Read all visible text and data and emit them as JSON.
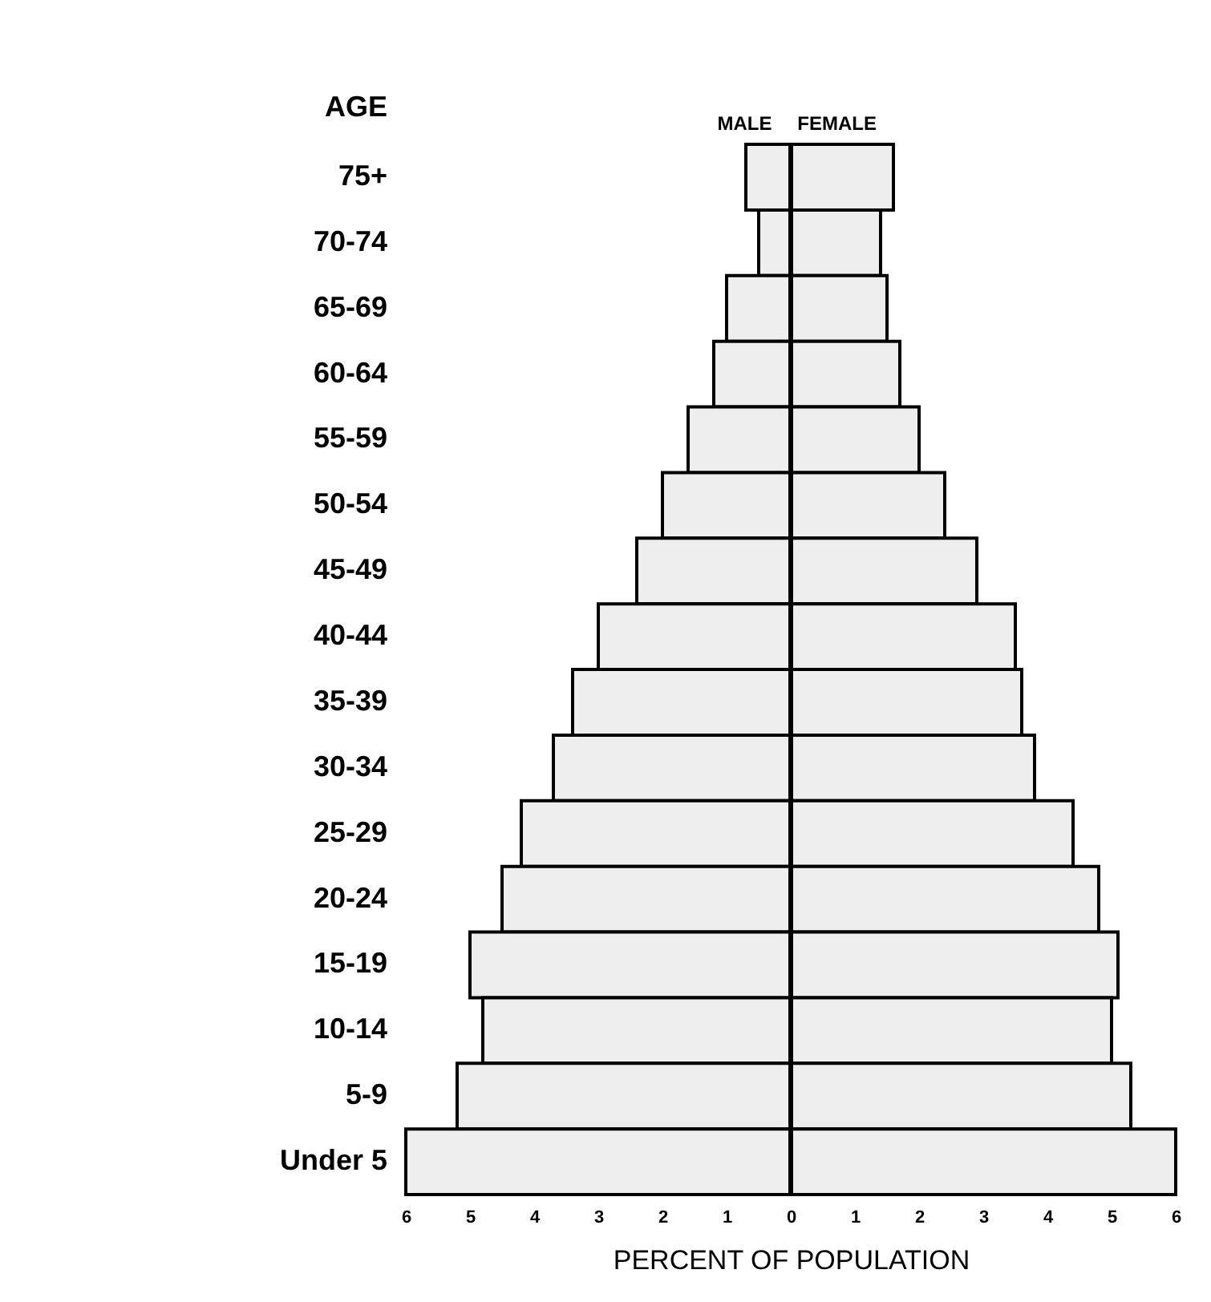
{
  "chart_data": {
    "type": "bar",
    "orientation": "horizontal",
    "ylabel": "AGE",
    "xlabel": "PERCENT OF POPULATION",
    "categories": [
      "75+",
      "70-74",
      "65-69",
      "60-64",
      "55-59",
      "50-54",
      "45-49",
      "40-44",
      "35-39",
      "30-34",
      "25-29",
      "20-24",
      "15-19",
      "10-14",
      "5-9",
      "Under 5"
    ],
    "series": [
      {
        "name": "MALE",
        "color": "#eeeeee",
        "values": [
          -0.7,
          -0.5,
          -1.0,
          -1.2,
          -1.6,
          -2.0,
          -2.4,
          -3.0,
          -3.4,
          -3.7,
          -4.2,
          -4.5,
          -5.0,
          -4.8,
          -5.2,
          -6.0
        ]
      },
      {
        "name": "FEMALE",
        "color": "#eeeeee",
        "values": [
          1.6,
          1.4,
          1.5,
          1.7,
          2.0,
          2.4,
          2.9,
          3.5,
          3.6,
          3.8,
          4.4,
          4.8,
          5.1,
          5.0,
          5.3,
          6.0
        ]
      }
    ],
    "xlim": [
      -6,
      6
    ],
    "xticks": [
      {
        "value": -6,
        "label": "6"
      },
      {
        "value": -5,
        "label": "5"
      },
      {
        "value": -4,
        "label": "4"
      },
      {
        "value": -3,
        "label": "3"
      },
      {
        "value": -2,
        "label": "2"
      },
      {
        "value": -1,
        "label": "1"
      },
      0,
      1,
      2,
      3,
      4,
      5,
      6
    ],
    "ref_lines": [
      {
        "axis": "x",
        "value": 0
      }
    ],
    "stacked": true,
    "legend": false
  }
}
